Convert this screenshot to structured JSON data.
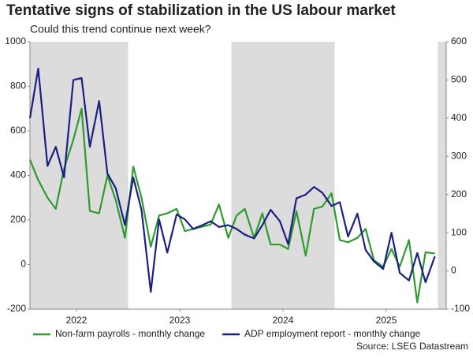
{
  "chart_data": {
    "type": "line",
    "title": "Tentative signs of stabilization in the US labour market",
    "subtitle": "Could this trend continue next week?",
    "source": "Source: LSEG Datastream",
    "x": [
      2022.05,
      2022.13,
      2022.22,
      2022.3,
      2022.38,
      2022.47,
      2022.55,
      2022.63,
      2022.72,
      2022.8,
      2022.88,
      2022.97,
      2023.05,
      2023.13,
      2023.22,
      2023.3,
      2023.38,
      2023.47,
      2023.55,
      2023.63,
      2023.72,
      2023.8,
      2023.88,
      2023.97,
      2024.05,
      2024.13,
      2024.22,
      2024.3,
      2024.38,
      2024.47,
      2024.55,
      2024.63,
      2024.72,
      2024.8,
      2024.88,
      2024.97,
      2025.05,
      2025.13,
      2025.22,
      2025.3,
      2025.38,
      2025.47,
      2025.55,
      2025.63,
      2025.72,
      2025.8,
      2025.88,
      2025.97
    ],
    "xlim": [
      2022.05,
      2026.08
    ],
    "xticks": [
      {
        "value": 2022.5,
        "label": "2022"
      },
      {
        "value": 2023.5,
        "label": "2023"
      },
      {
        "value": 2024.5,
        "label": "2024"
      },
      {
        "value": 2025.5,
        "label": "2025"
      }
    ],
    "shaded_spans": [
      [
        2022.05,
        2023
      ],
      [
        2024,
        2025
      ],
      [
        2026,
        2026.08
      ]
    ],
    "ylim": [
      -200,
      1000
    ],
    "yticks": [
      -200,
      0,
      200,
      400,
      600,
      800,
      1000
    ],
    "y2lim": [
      -100,
      600
    ],
    "y2ticks": [
      -100,
      0,
      100,
      200,
      300,
      400,
      500,
      600
    ],
    "legend": "bottom",
    "series": [
      {
        "name": "Non-farm payrolls - monthly change",
        "color": "#2e9b2e",
        "values": [
          470,
          380,
          300,
          250,
          430,
          560,
          700,
          240,
          230,
          400,
          290,
          120,
          440,
          300,
          80,
          220,
          230,
          250,
          150,
          160,
          170,
          180,
          270,
          120,
          220,
          250,
          120,
          230,
          90,
          90,
          70,
          240,
          40,
          250,
          260,
          320,
          110,
          100,
          120,
          160,
          20,
          -10,
          70,
          -10,
          110,
          -170,
          55,
          50
        ]
      },
      {
        "name": "ADP employment report - monthly change",
        "color": "#1c1f82",
        "axis": "y2",
        "values": [
          400,
          530,
          275,
          325,
          245,
          500,
          505,
          325,
          445,
          255,
          217,
          120,
          245,
          160,
          -55,
          135,
          48,
          148,
          135,
          110,
          120,
          130,
          115,
          120,
          110,
          95,
          85,
          120,
          160,
          130,
          70,
          190,
          200,
          220,
          205,
          170,
          180,
          90,
          150,
          55,
          25,
          5,
          100,
          -5,
          -25,
          47,
          -30,
          38
        ]
      }
    ]
  }
}
